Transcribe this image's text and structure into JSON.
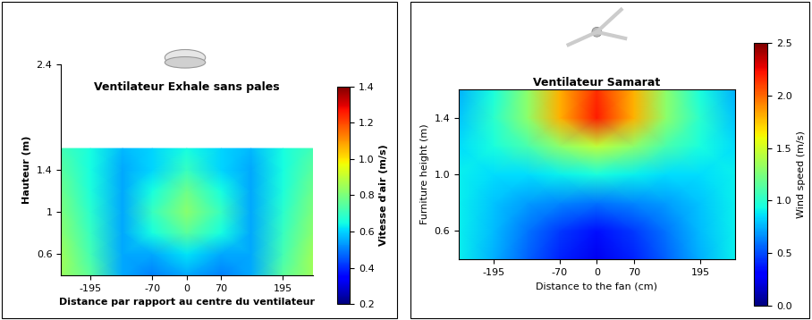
{
  "chart_data": [
    {
      "type": "heatmap",
      "title": "Ventilateur Exhale sans pales",
      "x_label": "Distance par rapport au centre du ventilateur",
      "y_label": "Hauteur (m)",
      "x": [
        -255,
        -195,
        -130,
        -70,
        0,
        70,
        130,
        195,
        255
      ],
      "y": [
        0.4,
        0.6,
        0.8,
        1.0,
        1.2,
        1.4,
        1.6
      ],
      "xlim": [
        -255,
        255
      ],
      "xticks": [
        -195,
        -70,
        0,
        70,
        195
      ],
      "ylim": [
        0.4,
        2.4
      ],
      "yticks": [
        0.6,
        1,
        1.4,
        2.4
      ],
      "cells": [
        [
          0.85,
          0.75,
          0.55,
          0.5,
          0.55,
          0.5,
          0.55,
          0.75,
          0.85
        ],
        [
          0.85,
          0.72,
          0.55,
          0.55,
          0.62,
          0.55,
          0.55,
          0.72,
          0.85
        ],
        [
          0.82,
          0.7,
          0.55,
          0.65,
          0.75,
          0.65,
          0.55,
          0.7,
          0.82
        ],
        [
          0.8,
          0.68,
          0.55,
          0.7,
          0.82,
          0.7,
          0.55,
          0.68,
          0.8
        ],
        [
          0.78,
          0.66,
          0.55,
          0.65,
          0.78,
          0.65,
          0.55,
          0.66,
          0.78
        ],
        [
          0.75,
          0.65,
          0.55,
          0.6,
          0.7,
          0.6,
          0.55,
          0.65,
          0.75
        ],
        [
          0.72,
          0.65,
          0.57,
          0.6,
          0.65,
          0.6,
          0.57,
          0.65,
          0.72
        ]
      ],
      "colorbar": {
        "label": "Vitesse d'air (m/s)",
        "range": [
          0.2,
          1.4
        ],
        "ticks": [
          0.2,
          0.4,
          0.6,
          0.8,
          {
            "value": 1,
            "label": "1.0"
          },
          1.2,
          1.4
        ]
      }
    },
    {
      "type": "heatmap",
      "title": "Ventilateur Samarat",
      "x_label": "Distance to the fan (cm)",
      "y_label": "Furniture height (m)",
      "x": [
        -260,
        -195,
        -130,
        -70,
        0,
        70,
        130,
        195,
        260
      ],
      "y": [
        0.4,
        0.6,
        0.8,
        1.0,
        1.2,
        1.4,
        1.6
      ],
      "xlim": [
        -260,
        260
      ],
      "xticks": [
        -195,
        -70,
        0,
        70,
        195
      ],
      "ylim": [
        0.4,
        1.6
      ],
      "yticks": [
        0.6,
        {
          "value": 1,
          "label": "1.0"
        },
        1.4
      ],
      "cells": [
        [
          0.9,
          0.75,
          0.55,
          0.4,
          0.25,
          0.4,
          0.55,
          0.75,
          0.9
        ],
        [
          0.9,
          0.78,
          0.6,
          0.45,
          0.35,
          0.45,
          0.6,
          0.78,
          0.9
        ],
        [
          0.9,
          0.8,
          0.7,
          0.65,
          0.6,
          0.65,
          0.7,
          0.8,
          0.9
        ],
        [
          0.9,
          0.85,
          0.85,
          0.9,
          0.95,
          0.9,
          0.85,
          0.85,
          0.9
        ],
        [
          0.85,
          0.95,
          1.1,
          1.3,
          1.45,
          1.3,
          1.1,
          0.95,
          0.85
        ],
        [
          0.8,
          1.0,
          1.3,
          1.8,
          2.2,
          1.8,
          1.3,
          1.0,
          0.8
        ],
        [
          0.75,
          0.95,
          1.3,
          1.8,
          2.15,
          1.8,
          1.3,
          0.95,
          0.75
        ]
      ],
      "colorbar": {
        "label": "Wind speed (m/s)",
        "range": [
          0,
          2.5
        ],
        "ticks": [
          {
            "value": 0,
            "label": "0.0"
          },
          0.5,
          {
            "value": 1,
            "label": "1.0"
          },
          1.5,
          {
            "value": 2,
            "label": "2.0"
          },
          2.5
        ]
      }
    }
  ]
}
